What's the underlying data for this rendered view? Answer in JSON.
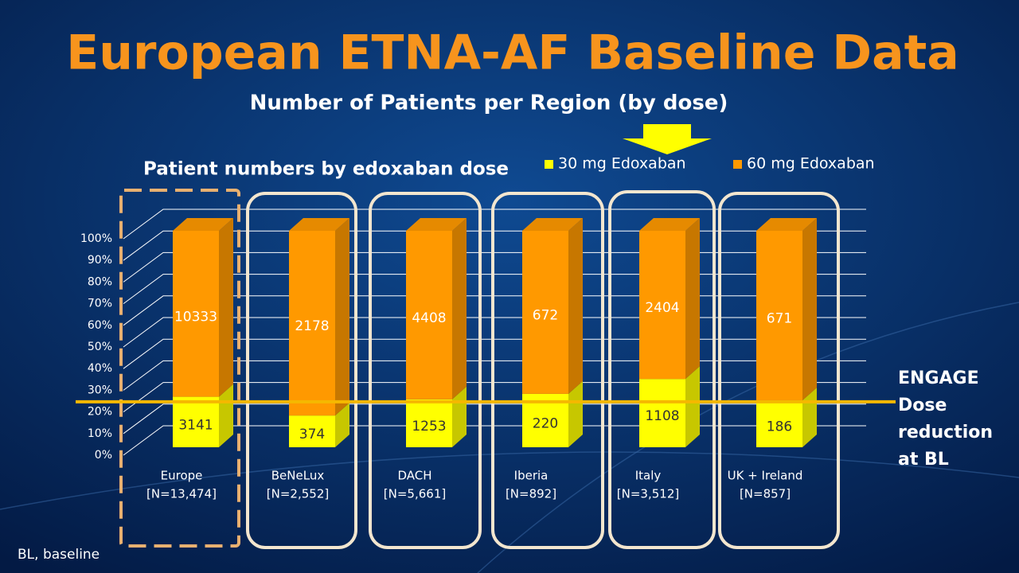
{
  "title": "European ETNA-AF Baseline Data",
  "subtitle": "Number of Patients per Region (by dose)",
  "footnote": "BL, baseline",
  "chart_data": {
    "type": "bar",
    "stacking": "percent",
    "title": "Patient numbers by edoxaban dose",
    "categories": [
      "Europe",
      "BeNeLux",
      "DACH",
      "Iberia",
      "Italy",
      "UK + Ireland"
    ],
    "category_sublabels": [
      "[N=13,474]",
      "[N=2,552]",
      "[N=5,661]",
      "[N=892]",
      "[N=3,512]",
      "[N=857]"
    ],
    "series": [
      {
        "name": "30 mg Edoxaban",
        "color": "#ffff00",
        "values": [
          3141,
          374,
          1253,
          220,
          1108,
          186
        ]
      },
      {
        "name": "60 mg Edoxaban",
        "color": "#ff9900",
        "values": [
          10333,
          2178,
          4408,
          672,
          2404,
          671
        ]
      }
    ],
    "ylim": [
      0,
      100
    ],
    "yticks": [
      {
        "value": 0,
        "label": "0%"
      },
      {
        "value": 10,
        "label": "10%"
      },
      {
        "value": 20,
        "label": "20%"
      },
      {
        "value": 30,
        "label": "30%"
      },
      {
        "value": 40,
        "label": "40%"
      },
      {
        "value": 50,
        "label": "50%"
      },
      {
        "value": 60,
        "label": "60%"
      },
      {
        "value": 70,
        "label": "70%"
      },
      {
        "value": 80,
        "label": "80%"
      },
      {
        "value": 90,
        "label": "90%"
      },
      {
        "value": 100,
        "label": "100%"
      }
    ],
    "grid": true,
    "reference_line": {
      "value": 21,
      "color": "#f5b800",
      "label": [
        "ENGAGE",
        "Dose",
        "reduction",
        "at BL"
      ]
    }
  }
}
